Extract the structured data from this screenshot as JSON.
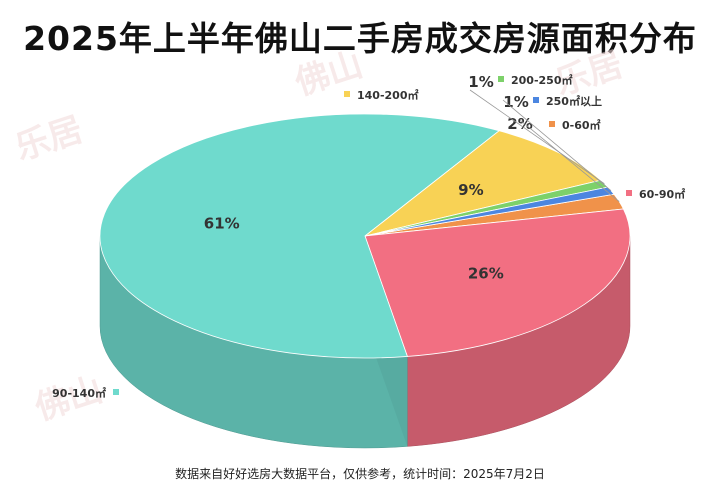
{
  "title": "2025年上半年佛山二手房成交房源面积分布",
  "footer": "数据来自好好选房大数据平台，仅供参考，统计时间：2025年7月2日",
  "watermark": [
    "乐居",
    "佛山"
  ],
  "chart_data": {
    "type": "pie",
    "title": "2025年上半年佛山二手房成交房源面积分布",
    "slices": [
      {
        "label": "0-60㎡",
        "value": 2,
        "value_label": "2%",
        "color": "#f0924a"
      },
      {
        "label": "60-90㎡",
        "value": 26,
        "value_label": "26%",
        "color": "#f26f82"
      },
      {
        "label": "90-140㎡",
        "value": 61,
        "value_label": "61%",
        "color": "#6fdacd"
      },
      {
        "label": "140-200㎡",
        "value": 9,
        "value_label": "9%",
        "color": "#f8d255"
      },
      {
        "label": "200-250㎡",
        "value": 1,
        "value_label": "1%",
        "color": "#7dd16a"
      },
      {
        "label": "250㎡以上",
        "value": 1,
        "value_label": "1%",
        "color": "#4c86e0"
      }
    ],
    "legend_placement": "outside labels next to slices"
  }
}
